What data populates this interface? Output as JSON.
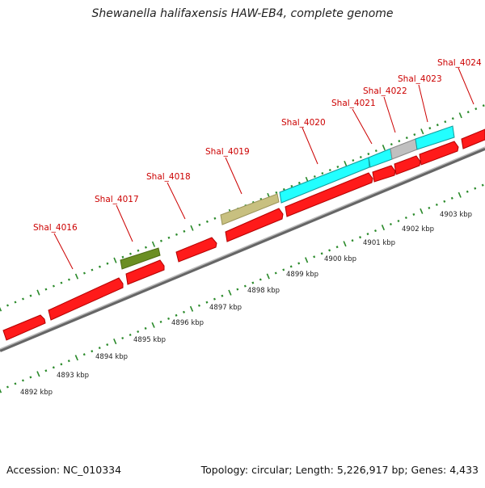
{
  "title": "Shewanella halifaxensis HAW-EB4, complete genome",
  "footer": {
    "accession": "Accession: NC_010334",
    "summary": "Topology: circular; Length: 5,226,917 bp; Genes: 4,433"
  },
  "colors": {
    "cds": "#ff1a1a",
    "cds_dark": "#b30000",
    "cyan_feature": "#22ffff",
    "gray_feature": "#c0c0c0",
    "olive_feature": "#6b8e23",
    "khaki_feature": "#c8c080",
    "tick": "#2a8a2a",
    "backbone": "#999999",
    "label": "#cc0000"
  },
  "gene_labels": [
    {
      "text": "Shal_4016"
    },
    {
      "text": "Shal_4017"
    },
    {
      "text": "Shal_4018"
    },
    {
      "text": "Shal_4019"
    },
    {
      "text": "Shal_4020"
    },
    {
      "text": "Shal_4021"
    },
    {
      "text": "Shal_4022"
    },
    {
      "text": "Shal_4023"
    },
    {
      "text": "Shal_4024"
    }
  ],
  "kbp_labels": [
    {
      "text": "4892 kbp"
    },
    {
      "text": "4893 kbp"
    },
    {
      "text": "4894 kbp"
    },
    {
      "text": "4895 kbp"
    },
    {
      "text": "4896 kbp"
    },
    {
      "text": "4897 kbp"
    },
    {
      "text": "4898 kbp"
    },
    {
      "text": "4899 kbp"
    },
    {
      "text": "4900 kbp"
    },
    {
      "text": "4901 kbp"
    },
    {
      "text": "4902 kbp"
    },
    {
      "text": "4903 kbp"
    }
  ]
}
